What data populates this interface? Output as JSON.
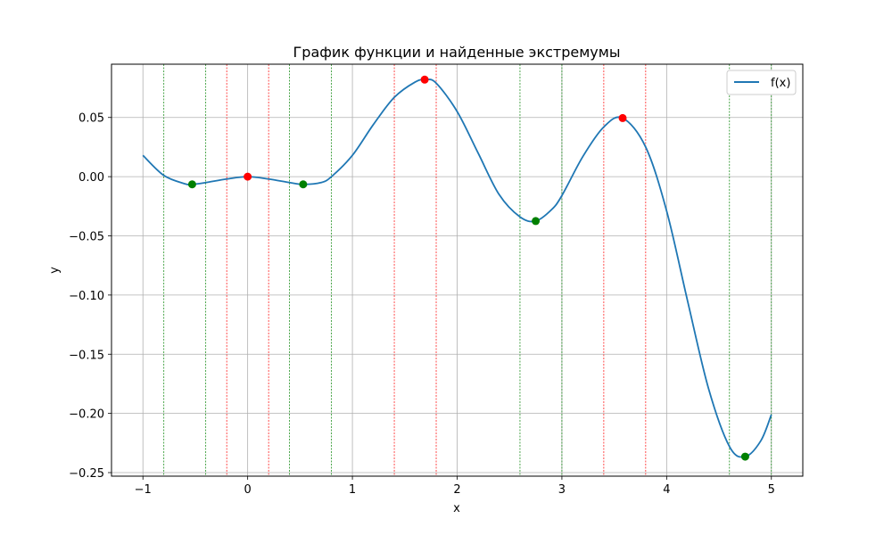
{
  "chart_data": {
    "type": "line",
    "title": "График функции и найденные экстремумы",
    "xlabel": "x",
    "ylabel": "y",
    "xlim": [
      -1.3,
      5.3
    ],
    "ylim": [
      -0.253,
      0.095
    ],
    "xticks": [
      -1,
      0,
      1,
      2,
      3,
      4,
      5
    ],
    "xtick_labels": [
      "−1",
      "0",
      "1",
      "2",
      "3",
      "4",
      "5"
    ],
    "yticks": [
      -0.25,
      -0.2,
      -0.15,
      -0.1,
      -0.05,
      0.0,
      0.05
    ],
    "ytick_labels": [
      "−0.25",
      "−0.20",
      "−0.15",
      "−0.10",
      "−0.05",
      "0.00",
      "0.05"
    ],
    "grid": true,
    "legend_position": "top-right",
    "series": [
      {
        "name": "f(x)",
        "color": "#1f77b4",
        "x": [
          -1.0,
          -0.8,
          -0.6,
          -0.53,
          -0.4,
          -0.2,
          0.0,
          0.2,
          0.4,
          0.53,
          0.7,
          0.8,
          1.0,
          1.2,
          1.4,
          1.6,
          1.7,
          1.8,
          2.0,
          2.2,
          2.4,
          2.6,
          2.75,
          2.9,
          3.0,
          3.2,
          3.4,
          3.58,
          3.8,
          4.0,
          4.2,
          4.4,
          4.6,
          4.75,
          4.9,
          5.0
        ],
        "y": [
          0.018,
          0.001,
          -0.006,
          -0.0065,
          -0.005,
          -0.002,
          0.0,
          -0.002,
          -0.005,
          -0.0065,
          -0.005,
          0.0,
          0.018,
          0.044,
          0.067,
          0.08,
          0.082,
          0.079,
          0.055,
          0.02,
          -0.015,
          -0.034,
          -0.0375,
          -0.028,
          -0.016,
          0.017,
          0.042,
          0.0495,
          0.025,
          -0.029,
          -0.105,
          -0.179,
          -0.228,
          -0.2365,
          -0.223,
          -0.201
        ]
      }
    ],
    "maxima": {
      "color": "#ff0000",
      "points": [
        {
          "x": 0.0,
          "y": 0.0
        },
        {
          "x": 1.69,
          "y": 0.082
        },
        {
          "x": 3.58,
          "y": 0.0495
        }
      ]
    },
    "minima": {
      "color": "#008000",
      "points": [
        {
          "x": -0.53,
          "y": -0.0065
        },
        {
          "x": 0.53,
          "y": -0.0065
        },
        {
          "x": 2.75,
          "y": -0.0375
        },
        {
          "x": 4.75,
          "y": -0.2365
        }
      ]
    },
    "interval_lines": [
      {
        "x": -0.8,
        "color": "#008000"
      },
      {
        "x": -0.4,
        "color": "#008000"
      },
      {
        "x": -0.2,
        "color": "#ff0000"
      },
      {
        "x": 0.2,
        "color": "#ff0000"
      },
      {
        "x": 0.4,
        "color": "#008000"
      },
      {
        "x": 0.8,
        "color": "#008000"
      },
      {
        "x": 1.4,
        "color": "#ff0000"
      },
      {
        "x": 1.8,
        "color": "#ff0000"
      },
      {
        "x": 2.6,
        "color": "#008000"
      },
      {
        "x": 3.0,
        "color": "#008000"
      },
      {
        "x": 3.4,
        "color": "#ff0000"
      },
      {
        "x": 3.8,
        "color": "#ff0000"
      },
      {
        "x": 4.6,
        "color": "#008000"
      },
      {
        "x": 5.0,
        "color": "#008000"
      }
    ]
  }
}
